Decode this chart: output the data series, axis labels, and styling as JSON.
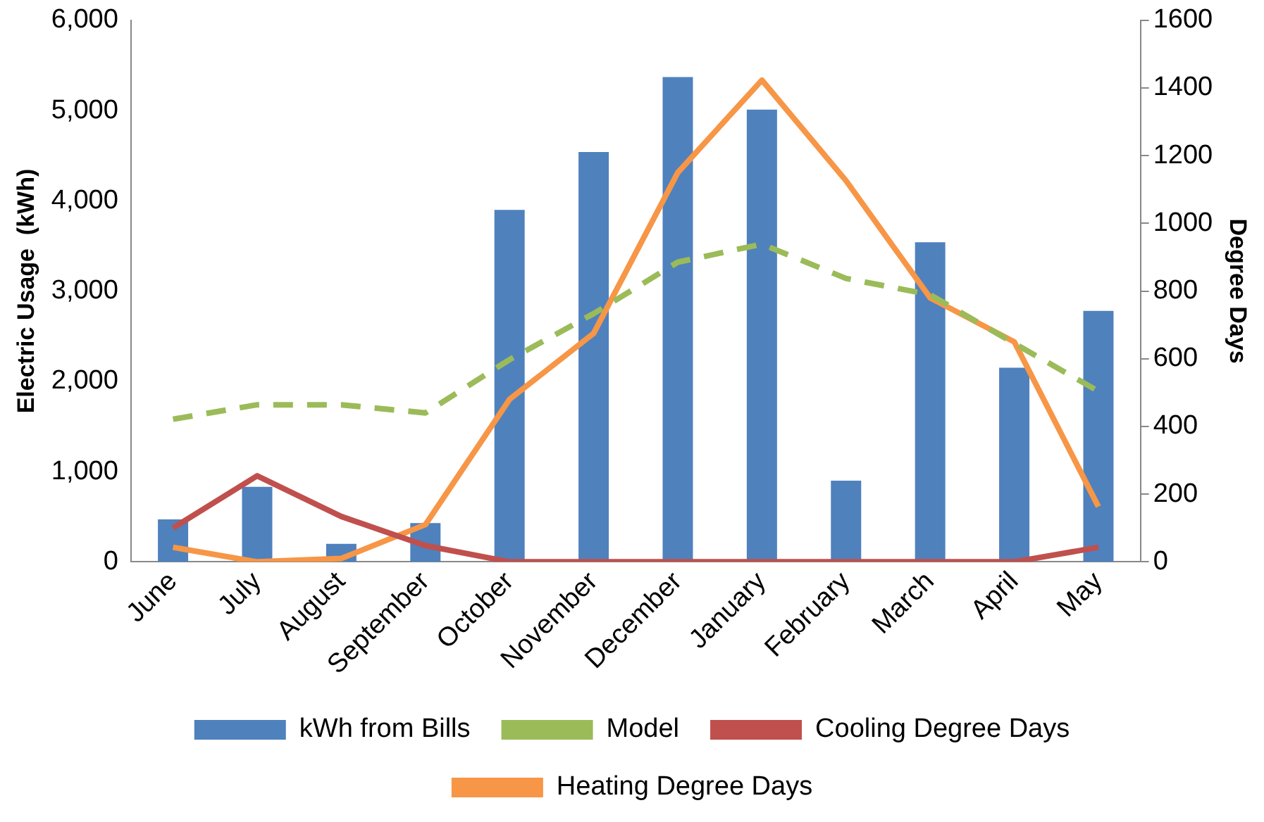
{
  "chart_data": {
    "type": "bar",
    "ylabel": "Electric Usage  (kWh)",
    "y2label": "Degree Days",
    "categories": [
      "June",
      "July",
      "August",
      "September",
      "October",
      "November",
      "December",
      "January",
      "February",
      "March",
      "April",
      "May"
    ],
    "series": [
      {
        "name": "kWh from Bills",
        "color": "#4f81bd",
        "values": [
          470,
          830,
          200,
          430,
          3900,
          4540,
          5370,
          5010,
          900,
          3540,
          2150,
          2780
        ]
      },
      {
        "name": "Model",
        "type": "line",
        "line_style": "dashed",
        "color": "#9bbb59",
        "values": [
          1580,
          1740,
          1740,
          1650,
          2240,
          2750,
          3320,
          3520,
          3140,
          2960,
          2420,
          1890
        ]
      },
      {
        "name": "Cooling Degree Days",
        "type": "line",
        "axis": "y2",
        "line_style": "solid",
        "color": "#c0504d",
        "values": [
          100,
          254,
          134,
          48,
          0,
          0,
          0,
          0,
          0,
          0,
          0,
          43
        ]
      },
      {
        "name": "Heating Degree Days",
        "type": "line",
        "axis": "y2",
        "line_style": "solid",
        "color": "#f79646",
        "values": [
          43,
          0,
          10,
          110,
          480,
          675,
          1150,
          1423,
          1126,
          780,
          650,
          163
        ]
      }
    ],
    "ylim": [
      0,
      6000
    ],
    "yticks": [
      {
        "value": 0,
        "label": "0"
      },
      {
        "value": 1000,
        "label": "1,000"
      },
      {
        "value": 2000,
        "label": "2,000"
      },
      {
        "value": 3000,
        "label": "3,000"
      },
      {
        "value": 4000,
        "label": "4,000"
      },
      {
        "value": 5000,
        "label": "5,000"
      },
      {
        "value": 6000,
        "label": "6,000"
      }
    ],
    "y2lim": [
      0,
      1600
    ],
    "y2ticks": [
      0,
      200,
      400,
      600,
      800,
      1000,
      1200,
      1400,
      1600
    ],
    "grid": false,
    "legend": "bottom",
    "marker": "none"
  }
}
